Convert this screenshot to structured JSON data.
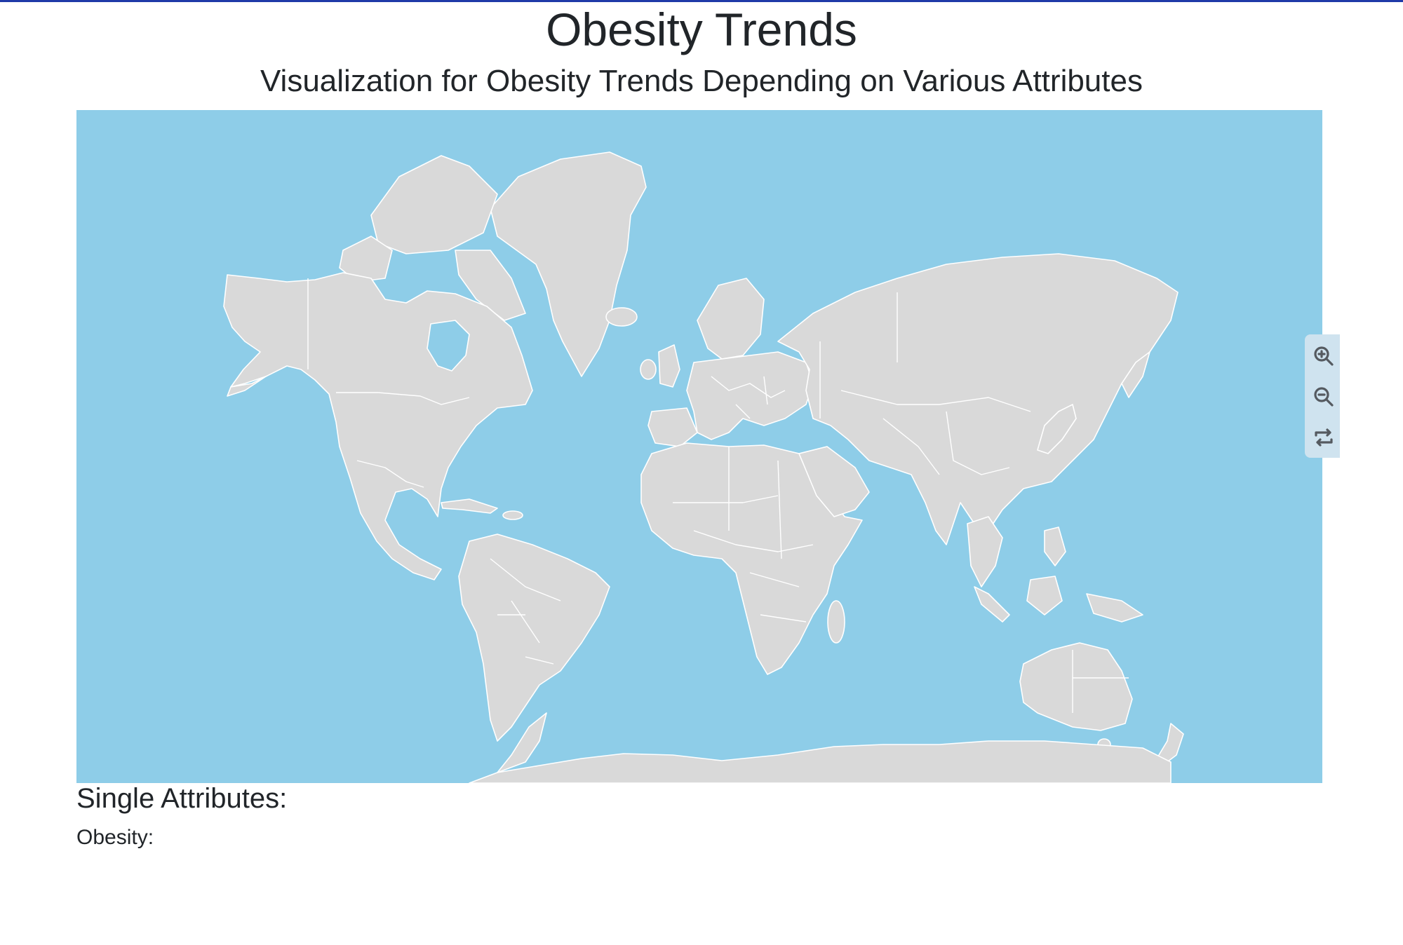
{
  "header": {
    "title": "Obesity Trends",
    "subtitle": "Visualization for Obesity Trends Depending on Various Attributes"
  },
  "map": {
    "ocean_color": "#8ecde8",
    "land_color": "#d9d9d9",
    "border_color": "#ffffff",
    "projection": "mercator"
  },
  "zoom_controls": {
    "zoom_in_icon": "zoom-in-icon",
    "zoom_out_icon": "zoom-out-icon",
    "reset_icon": "reset-icon"
  },
  "sections": {
    "single_attributes_heading": "Single Attributes:",
    "obesity_label": "Obesity:"
  },
  "colors": {
    "accent_rule": "#1f3aa8",
    "text": "#212529",
    "control_bg": "#cfe3ef",
    "control_icon": "#555a60"
  }
}
